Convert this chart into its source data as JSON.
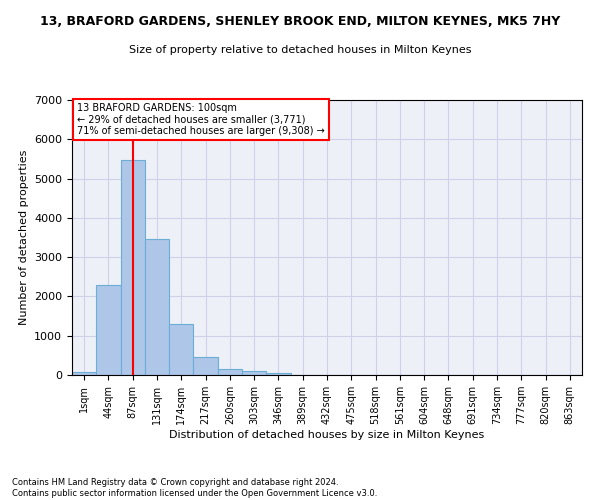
{
  "title": "13, BRAFORD GARDENS, SHENLEY BROOK END, MILTON KEYNES, MK5 7HY",
  "subtitle": "Size of property relative to detached houses in Milton Keynes",
  "xlabel": "Distribution of detached houses by size in Milton Keynes",
  "ylabel": "Number of detached properties",
  "bin_labels": [
    "1sqm",
    "44sqm",
    "87sqm",
    "131sqm",
    "174sqm",
    "217sqm",
    "260sqm",
    "303sqm",
    "346sqm",
    "389sqm",
    "432sqm",
    "475sqm",
    "518sqm",
    "561sqm",
    "604sqm",
    "648sqm",
    "691sqm",
    "734sqm",
    "777sqm",
    "820sqm",
    "863sqm"
  ],
  "bar_values": [
    70,
    2280,
    5470,
    3450,
    1310,
    460,
    155,
    90,
    55,
    0,
    0,
    0,
    0,
    0,
    0,
    0,
    0,
    0,
    0,
    0,
    0
  ],
  "bar_color": "#aec6e8",
  "bar_edge_color": "#6aaed6",
  "vline_x": 2,
  "vline_color": "red",
  "annotation_text": "13 BRAFORD GARDENS: 100sqm\n← 29% of detached houses are smaller (3,771)\n71% of semi-detached houses are larger (9,308) →",
  "annotation_box_color": "white",
  "annotation_box_edge_color": "red",
  "ylim": [
    0,
    7000
  ],
  "yticks": [
    0,
    1000,
    2000,
    3000,
    4000,
    5000,
    6000,
    7000
  ],
  "grid_color": "#d0d0e8",
  "background_color": "#eef0f8",
  "footer_line1": "Contains HM Land Registry data © Crown copyright and database right 2024.",
  "footer_line2": "Contains public sector information licensed under the Open Government Licence v3.0."
}
